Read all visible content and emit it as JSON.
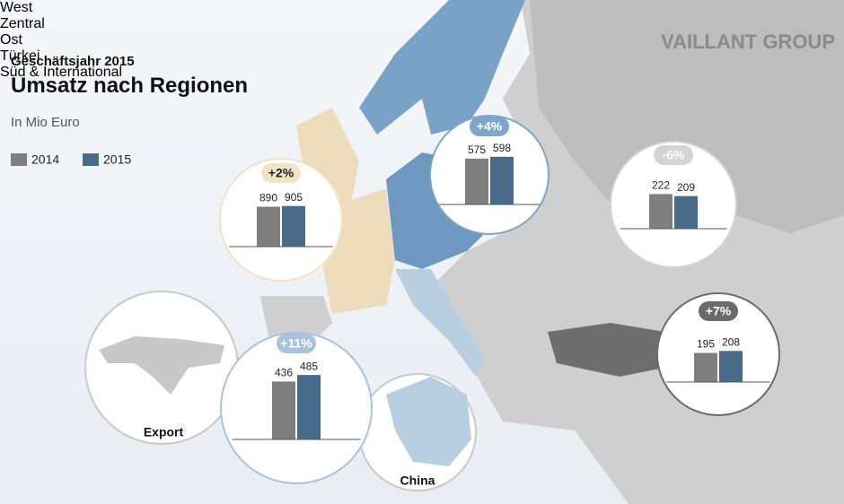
{
  "header": {
    "subtitle": "Geschäftsjahr 2015",
    "title": "Umsatz nach Regionen",
    "unit": "In Mio Euro",
    "brand": "VAILLANT GROUP"
  },
  "legend": [
    {
      "name": "2014",
      "color": "#7f7f7f"
    },
    {
      "name": "2015",
      "color": "#4a6a8a"
    }
  ],
  "map_labels": {
    "export": "Export",
    "china": "China"
  },
  "chart_data": [
    {
      "type": "bar",
      "title": "West",
      "annotation": "+2%",
      "color": "#f1e3c6",
      "values": [
        890,
        905
      ],
      "ylim": [
        0,
        1600
      ]
    },
    {
      "type": "bar",
      "title": "Zentral",
      "annotation": "+4%",
      "color": "#7ea6c8",
      "values": [
        575,
        598
      ],
      "ylim": [
        0,
        900
      ]
    },
    {
      "type": "bar",
      "title": "Ost",
      "annotation": "-6%",
      "color": "#d4d4d4",
      "values": [
        222,
        209
      ],
      "ylim": [
        0,
        460
      ]
    },
    {
      "type": "bar",
      "title": "Türkei",
      "annotation": "+7%",
      "color": "#6b6b6b",
      "values": [
        195,
        208
      ],
      "ylim": [
        0,
        480
      ]
    },
    {
      "type": "bar",
      "title": "Süd & International",
      "annotation": "+11%",
      "color": "#a7c4dc",
      "values": [
        436,
        485
      ],
      "ylim": [
        0,
        540
      ]
    }
  ]
}
